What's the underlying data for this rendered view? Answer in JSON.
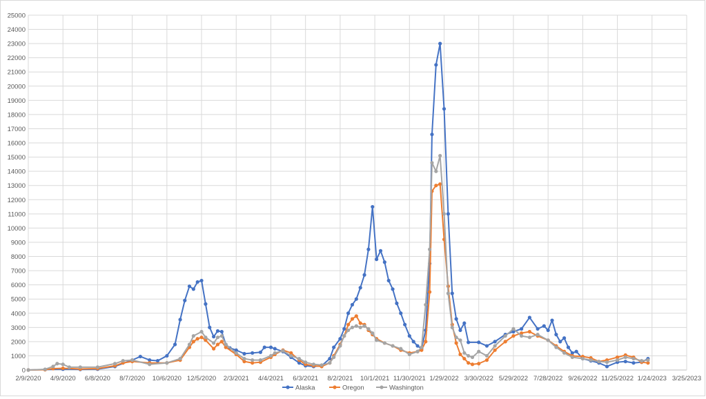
{
  "chart_data": {
    "type": "line",
    "title": "",
    "xlabel": "",
    "ylabel": "",
    "x_axis": {
      "type": "date",
      "min": "2/9/2020",
      "max": "3/25/2023",
      "tick_labels": [
        "2/9/2020",
        "4/9/2020",
        "6/8/2020",
        "8/7/2020",
        "10/6/2020",
        "12/5/2020",
        "2/3/2021",
        "4/4/2021",
        "6/3/2021",
        "8/2/2021",
        "10/1/2021",
        "11/30/2021",
        "1/29/2022",
        "3/30/2022",
        "5/29/2022",
        "7/28/2022",
        "9/26/2022",
        "11/25/2022",
        "1/24/2023",
        "3/25/2023"
      ]
    },
    "y_axis": {
      "min": 0,
      "max": 25000,
      "major_unit": 1000,
      "tick_labels": [
        "0",
        "1000",
        "2000",
        "3000",
        "4000",
        "5000",
        "6000",
        "7000",
        "8000",
        "9000",
        "10000",
        "11000",
        "12000",
        "13000",
        "14000",
        "15000",
        "16000",
        "17000",
        "18000",
        "19000",
        "20000",
        "21000",
        "22000",
        "23000",
        "24000",
        "25000"
      ]
    },
    "grid": true,
    "legend_position": "bottom",
    "series": [
      {
        "name": "Alaska",
        "color": "#4472c4",
        "points": [
          [
            "2/9/2020",
            0
          ],
          [
            "3/9/2020",
            30
          ],
          [
            "4/9/2020",
            60
          ],
          [
            "5/9/2020",
            40
          ],
          [
            "6/8/2020",
            60
          ],
          [
            "7/8/2020",
            250
          ],
          [
            "8/7/2020",
            700
          ],
          [
            "8/21/2020",
            950
          ],
          [
            "9/6/2020",
            700
          ],
          [
            "9/20/2020",
            650
          ],
          [
            "10/6/2020",
            1000
          ],
          [
            "10/20/2020",
            1800
          ],
          [
            "10/29/2020",
            3550
          ],
          [
            "11/6/2020",
            4900
          ],
          [
            "11/14/2020",
            5900
          ],
          [
            "11/21/2020",
            5700
          ],
          [
            "11/28/2020",
            6200
          ],
          [
            "12/5/2020",
            6300
          ],
          [
            "12/12/2020",
            4650
          ],
          [
            "12/19/2020",
            3000
          ],
          [
            "12/26/2020",
            2350
          ],
          [
            "1/2/2021",
            2750
          ],
          [
            "1/9/2021",
            2700
          ],
          [
            "1/16/2021",
            1800
          ],
          [
            "1/23/2021",
            1550
          ],
          [
            "2/3/2021",
            1400
          ],
          [
            "2/17/2021",
            1150
          ],
          [
            "3/3/2021",
            1200
          ],
          [
            "3/17/2021",
            1250
          ],
          [
            "3/24/2021",
            1600
          ],
          [
            "4/4/2021",
            1600
          ],
          [
            "4/11/2021",
            1500
          ],
          [
            "4/25/2021",
            1300
          ],
          [
            "5/9/2021",
            900
          ],
          [
            "5/23/2021",
            500
          ],
          [
            "6/3/2021",
            300
          ],
          [
            "6/17/2021",
            250
          ],
          [
            "7/1/2021",
            300
          ],
          [
            "7/15/2021",
            800
          ],
          [
            "7/22/2021",
            1600
          ],
          [
            "8/2/2021",
            2200
          ],
          [
            "8/9/2021",
            2900
          ],
          [
            "8/16/2021",
            4000
          ],
          [
            "8/23/2021",
            4600
          ],
          [
            "8/30/2021",
            5000
          ],
          [
            "9/6/2021",
            5800
          ],
          [
            "9/13/2021",
            6700
          ],
          [
            "9/20/2021",
            8500
          ],
          [
            "9/27/2021",
            11500
          ],
          [
            "10/4/2021",
            7800
          ],
          [
            "10/11/2021",
            8400
          ],
          [
            "10/18/2021",
            7600
          ],
          [
            "10/25/2021",
            6300
          ],
          [
            "11/1/2021",
            5700
          ],
          [
            "11/8/2021",
            4700
          ],
          [
            "11/15/2021",
            4000
          ],
          [
            "11/22/2021",
            3200
          ],
          [
            "11/30/2021",
            2400
          ],
          [
            "12/7/2021",
            2000
          ],
          [
            "12/14/2021",
            1700
          ],
          [
            "12/21/2021",
            1500
          ],
          [
            "12/28/2021",
            2800
          ],
          [
            "1/4/2022",
            7500
          ],
          [
            "1/8/2022",
            16600
          ],
          [
            "1/15/2022",
            21500
          ],
          [
            "1/22/2022",
            23000
          ],
          [
            "1/29/2022",
            18400
          ],
          [
            "2/5/2022",
            11000
          ],
          [
            "2/12/2022",
            5400
          ],
          [
            "2/19/2022",
            3600
          ],
          [
            "2/26/2022",
            2800
          ],
          [
            "3/5/2022",
            3300
          ],
          [
            "3/12/2022",
            1950
          ],
          [
            "3/30/2022",
            1950
          ],
          [
            "4/13/2022",
            1700
          ],
          [
            "4/27/2022",
            2000
          ],
          [
            "5/15/2022",
            2500
          ],
          [
            "5/29/2022",
            2700
          ],
          [
            "6/12/2022",
            2900
          ],
          [
            "6/26/2022",
            3700
          ],
          [
            "7/10/2022",
            2900
          ],
          [
            "7/21/2022",
            3100
          ],
          [
            "7/28/2022",
            2800
          ],
          [
            "8/4/2022",
            3500
          ],
          [
            "8/11/2022",
            2500
          ],
          [
            "8/18/2022",
            2000
          ],
          [
            "8/25/2022",
            2250
          ],
          [
            "9/1/2022",
            1600
          ],
          [
            "9/8/2022",
            1200
          ],
          [
            "9/15/2022",
            1300
          ],
          [
            "9/26/2022",
            800
          ],
          [
            "10/10/2022",
            650
          ],
          [
            "10/24/2022",
            500
          ],
          [
            "11/7/2022",
            250
          ],
          [
            "11/25/2022",
            550
          ],
          [
            "12/9/2022",
            600
          ],
          [
            "12/23/2022",
            500
          ],
          [
            "1/6/2023",
            550
          ],
          [
            "1/17/2023",
            800
          ]
        ]
      },
      {
        "name": "Oregon",
        "color": "#ed7d31",
        "points": [
          [
            "2/9/2020",
            0
          ],
          [
            "3/9/2020",
            20
          ],
          [
            "3/23/2020",
            100
          ],
          [
            "4/9/2020",
            120
          ],
          [
            "5/9/2020",
            70
          ],
          [
            "6/8/2020",
            100
          ],
          [
            "7/8/2020",
            300
          ],
          [
            "7/22/2020",
            500
          ],
          [
            "8/7/2020",
            600
          ],
          [
            "9/6/2020",
            500
          ],
          [
            "10/6/2020",
            500
          ],
          [
            "10/29/2020",
            700
          ],
          [
            "11/14/2020",
            1600
          ],
          [
            "11/21/2020",
            2000
          ],
          [
            "11/28/2020",
            2200
          ],
          [
            "12/5/2020",
            2300
          ],
          [
            "12/12/2020",
            2100
          ],
          [
            "12/26/2020",
            1500
          ],
          [
            "1/2/2021",
            1800
          ],
          [
            "1/9/2021",
            2000
          ],
          [
            "1/16/2021",
            1600
          ],
          [
            "2/3/2021",
            1100
          ],
          [
            "2/17/2021",
            600
          ],
          [
            "3/3/2021",
            500
          ],
          [
            "3/17/2021",
            550
          ],
          [
            "4/4/2021",
            900
          ],
          [
            "4/11/2021",
            1100
          ],
          [
            "4/25/2021",
            1400
          ],
          [
            "5/9/2021",
            1200
          ],
          [
            "5/23/2021",
            700
          ],
          [
            "6/3/2021",
            400
          ],
          [
            "6/17/2021",
            300
          ],
          [
            "7/1/2021",
            250
          ],
          [
            "7/15/2021",
            500
          ],
          [
            "7/22/2021",
            1000
          ],
          [
            "8/2/2021",
            1800
          ],
          [
            "8/9/2021",
            2400
          ],
          [
            "8/16/2021",
            3200
          ],
          [
            "8/23/2021",
            3600
          ],
          [
            "8/30/2021",
            3800
          ],
          [
            "9/6/2021",
            3300
          ],
          [
            "9/13/2021",
            3200
          ],
          [
            "9/20/2021",
            2800
          ],
          [
            "9/27/2021",
            2500
          ],
          [
            "10/4/2021",
            2200
          ],
          [
            "10/18/2021",
            1900
          ],
          [
            "11/1/2021",
            1700
          ],
          [
            "11/15/2021",
            1400
          ],
          [
            "11/30/2021",
            1200
          ],
          [
            "12/14/2021",
            1300
          ],
          [
            "12/21/2021",
            1400
          ],
          [
            "12/28/2021",
            2000
          ],
          [
            "1/4/2022",
            5500
          ],
          [
            "1/8/2022",
            12600
          ],
          [
            "1/15/2022",
            13000
          ],
          [
            "1/22/2022",
            13100
          ],
          [
            "1/29/2022",
            9200
          ],
          [
            "2/5/2022",
            5900
          ],
          [
            "2/12/2022",
            3200
          ],
          [
            "2/19/2022",
            1900
          ],
          [
            "2/26/2022",
            1100
          ],
          [
            "3/5/2022",
            800
          ],
          [
            "3/12/2022",
            500
          ],
          [
            "3/19/2022",
            400
          ],
          [
            "3/30/2022",
            450
          ],
          [
            "4/13/2022",
            700
          ],
          [
            "4/27/2022",
            1400
          ],
          [
            "5/15/2022",
            2000
          ],
          [
            "5/29/2022",
            2400
          ],
          [
            "6/12/2022",
            2600
          ],
          [
            "6/26/2022",
            2700
          ],
          [
            "7/10/2022",
            2400
          ],
          [
            "7/28/2022",
            2100
          ],
          [
            "8/11/2022",
            1700
          ],
          [
            "8/25/2022",
            1300
          ],
          [
            "9/8/2022",
            1000
          ],
          [
            "9/26/2022",
            950
          ],
          [
            "10/10/2022",
            850
          ],
          [
            "10/24/2022",
            600
          ],
          [
            "11/7/2022",
            700
          ],
          [
            "11/25/2022",
            900
          ],
          [
            "12/9/2022",
            1050
          ],
          [
            "12/23/2022",
            900
          ],
          [
            "1/6/2023",
            550
          ],
          [
            "1/17/2023",
            500
          ]
        ]
      },
      {
        "name": "Washington",
        "color": "#a5a5a5",
        "points": [
          [
            "2/9/2020",
            0
          ],
          [
            "3/9/2020",
            50
          ],
          [
            "3/23/2020",
            250
          ],
          [
            "3/30/2020",
            450
          ],
          [
            "4/9/2020",
            400
          ],
          [
            "4/20/2020",
            200
          ],
          [
            "5/9/2020",
            200
          ],
          [
            "6/8/2020",
            200
          ],
          [
            "7/8/2020",
            450
          ],
          [
            "7/22/2020",
            650
          ],
          [
            "8/7/2020",
            700
          ],
          [
            "9/6/2020",
            400
          ],
          [
            "10/6/2020",
            500
          ],
          [
            "10/29/2020",
            800
          ],
          [
            "11/14/2020",
            1800
          ],
          [
            "11/21/2020",
            2400
          ],
          [
            "12/5/2020",
            2700
          ],
          [
            "12/12/2020",
            2300
          ],
          [
            "12/26/2020",
            1900
          ],
          [
            "1/2/2021",
            2300
          ],
          [
            "1/9/2021",
            2400
          ],
          [
            "1/16/2021",
            1800
          ],
          [
            "2/3/2021",
            1200
          ],
          [
            "2/17/2021",
            800
          ],
          [
            "3/3/2021",
            700
          ],
          [
            "3/17/2021",
            700
          ],
          [
            "4/4/2021",
            1000
          ],
          [
            "4/11/2021",
            1200
          ],
          [
            "4/25/2021",
            1350
          ],
          [
            "5/9/2021",
            1000
          ],
          [
            "5/23/2021",
            800
          ],
          [
            "6/3/2021",
            550
          ],
          [
            "6/17/2021",
            400
          ],
          [
            "7/1/2021",
            350
          ],
          [
            "7/15/2021",
            500
          ],
          [
            "7/22/2021",
            900
          ],
          [
            "8/2/2021",
            1700
          ],
          [
            "8/9/2021",
            2400
          ],
          [
            "8/16/2021",
            2800
          ],
          [
            "8/23/2021",
            3000
          ],
          [
            "8/30/2021",
            3100
          ],
          [
            "9/6/2021",
            3000
          ],
          [
            "9/13/2021",
            3100
          ],
          [
            "9/20/2021",
            2900
          ],
          [
            "9/27/2021",
            2600
          ],
          [
            "10/4/2021",
            2100
          ],
          [
            "10/18/2021",
            1900
          ],
          [
            "11/1/2021",
            1700
          ],
          [
            "11/15/2021",
            1500
          ],
          [
            "11/30/2021",
            1100
          ],
          [
            "12/14/2021",
            1300
          ],
          [
            "12/21/2021",
            1600
          ],
          [
            "12/28/2021",
            4600
          ],
          [
            "1/4/2022",
            8500
          ],
          [
            "1/8/2022",
            14600
          ],
          [
            "1/15/2022",
            14000
          ],
          [
            "1/22/2022",
            15100
          ],
          [
            "1/29/2022",
            11000
          ],
          [
            "2/5/2022",
            5400
          ],
          [
            "2/12/2022",
            3000
          ],
          [
            "2/19/2022",
            2300
          ],
          [
            "2/26/2022",
            2100
          ],
          [
            "3/5/2022",
            1200
          ],
          [
            "3/12/2022",
            1000
          ],
          [
            "3/19/2022",
            900
          ],
          [
            "3/30/2022",
            1300
          ],
          [
            "4/13/2022",
            1000
          ],
          [
            "4/27/2022",
            1700
          ],
          [
            "5/15/2022",
            2400
          ],
          [
            "5/29/2022",
            2900
          ],
          [
            "6/12/2022",
            2400
          ],
          [
            "6/26/2022",
            2300
          ],
          [
            "7/10/2022",
            2500
          ],
          [
            "7/28/2022",
            2100
          ],
          [
            "8/11/2022",
            1600
          ],
          [
            "8/25/2022",
            1200
          ],
          [
            "9/8/2022",
            900
          ],
          [
            "9/26/2022",
            800
          ],
          [
            "10/10/2022",
            700
          ],
          [
            "10/24/2022",
            600
          ],
          [
            "11/7/2022",
            550
          ],
          [
            "11/25/2022",
            700
          ],
          [
            "12/9/2022",
            900
          ],
          [
            "12/23/2022",
            800
          ],
          [
            "1/6/2023",
            650
          ],
          [
            "1/17/2023",
            700
          ]
        ]
      }
    ]
  }
}
